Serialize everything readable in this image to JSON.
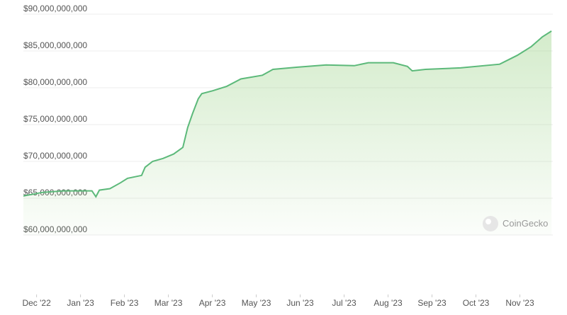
{
  "chart_data": {
    "type": "area",
    "watermark": "CoinGecko",
    "color": "#5cb97a",
    "grid": true,
    "x": [
      -0.3,
      0.14,
      0.62,
      1.26,
      1.35,
      1.43,
      1.67,
      1.91,
      2.07,
      2.39,
      2.47,
      2.64,
      2.88,
      3.12,
      3.33,
      3.44,
      3.55,
      3.68,
      3.76,
      4.01,
      4.33,
      4.65,
      5.14,
      5.38,
      5.94,
      6.59,
      7.23,
      7.55,
      8.12,
      8.44,
      8.55,
      8.85,
      9.65,
      10.54,
      10.94,
      11.26,
      11.51,
      11.72
    ],
    "values": [
      65300000000,
      65800000000,
      66000000000,
      66000000000,
      65200000000,
      66100000000,
      66300000000,
      67100000000,
      67700000000,
      68100000000,
      69200000000,
      70000000000,
      70400000000,
      71000000000,
      71900000000,
      74600000000,
      76500000000,
      78500000000,
      79200000000,
      79600000000,
      80200000000,
      81200000000,
      81700000000,
      82500000000,
      82800000000,
      83100000000,
      83000000000,
      83400000000,
      83400000000,
      82900000000,
      82300000000,
      82500000000,
      82700000000,
      83200000000,
      84400000000,
      85600000000,
      86900000000,
      87700000000
    ],
    "xlim": [
      -0.3,
      11.75
    ],
    "xticks": [
      {
        "value": 0,
        "label": "Dec '22"
      },
      {
        "value": 1,
        "label": "Jan '23"
      },
      {
        "value": 2,
        "label": "Feb '23"
      },
      {
        "value": 3,
        "label": "Mar '23"
      },
      {
        "value": 4,
        "label": "Apr '23"
      },
      {
        "value": 5,
        "label": "May '23"
      },
      {
        "value": 6,
        "label": "Jun '23"
      },
      {
        "value": 7,
        "label": "Jul '23"
      },
      {
        "value": 8,
        "label": "Aug '23"
      },
      {
        "value": 9,
        "label": "Sep '23"
      },
      {
        "value": 10,
        "label": "Oct '23"
      },
      {
        "value": 11,
        "label": "Nov '23"
      }
    ],
    "ylim": [
      60000000000,
      90000000000
    ],
    "yticks": [
      {
        "value": 60000000000,
        "label": "$60,000,000,000"
      },
      {
        "value": 65000000000,
        "label": "$65,000,000,000"
      },
      {
        "value": 70000000000,
        "label": "$70,000,000,000"
      },
      {
        "value": 75000000000,
        "label": "$75,000,000,000"
      },
      {
        "value": 80000000000,
        "label": "$80,000,000,000"
      },
      {
        "value": 85000000000,
        "label": "$85,000,000,000"
      },
      {
        "value": 90000000000,
        "label": "$90,000,000,000"
      }
    ]
  }
}
